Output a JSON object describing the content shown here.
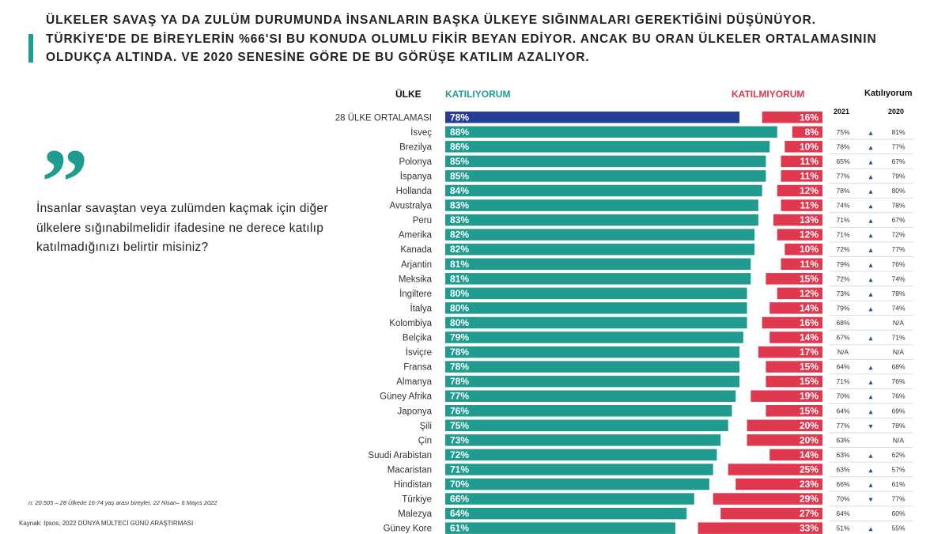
{
  "headline": "ÜLKELER SAVAŞ YA DA ZULÜM DURUMUNDA İNSANLARIN BAŞKA ÜLKEYE SIĞINMALARI GEREKTİĞİNİ DÜŞÜNÜYOR. TÜRKİYE'DE DE BİREYLERİN %66'SI BU KONUDA OLUMLU FİKİR BEYAN EDİYOR. ANCAK BU ORAN ÜLKELER ORTALAMASININ OLDUKÇA ALTINDA.  VE 2020 SENESİNE GÖRE DE BU GÖRÜŞE KATILIM AZALIYOR.",
  "quote_mark": "”",
  "question": "İnsanlar savaştan veya zulümden kaçmak için diğer ülkelere sığınabilmelidir ifadesine ne derece katılıp katılmadığınızı belirtir misiniz?",
  "footnote": "n: 20.505 – 28 Ülkede 16-74 yaş arası bireyler, 22 Nisan– 6 Mayıs 2022",
  "source": "Kaynak: Ipsos, 2022 DÜNYA MÜLTECİ GÜNÜ ARAŞTIRMASI",
  "headers": {
    "country": "ÜLKE",
    "agree": "KATILIYORUM",
    "disagree": "KATILMIYORUM",
    "trend": "Katılıyorum",
    "year_a": "2021",
    "year_b": "2020"
  },
  "colors": {
    "agree": "#1f9c8f",
    "average": "#243d96",
    "disagree": "#e0384f",
    "accent": "#1f9c8f"
  },
  "chart_data": {
    "type": "bar",
    "orientation": "horizontal-diverging",
    "categories": [
      "28 ÜLKE ORTALAMASI",
      "İsveç",
      "Brezilya",
      "Polonya",
      "İspanya",
      "Hollanda",
      "Avustralya",
      "Peru",
      "Amerika",
      "Kanada",
      "Arjantin",
      "Meksika",
      "İngiltere",
      "İtalya",
      "Kolombiya",
      "Belçika",
      "İsviçre",
      "Fransa",
      "Almanya",
      "Güney Afrika",
      "Japonya",
      "Şili",
      "Çin",
      "Suudi Arabistan",
      "Macaristan",
      "Hindistan",
      "Türkiye",
      "Malezya",
      "Güney Kore"
    ],
    "series": [
      {
        "name": "KATILIYORUM",
        "values": [
          78,
          88,
          86,
          85,
          85,
          84,
          83,
          83,
          82,
          82,
          81,
          81,
          80,
          80,
          80,
          79,
          78,
          78,
          78,
          77,
          76,
          75,
          73,
          72,
          71,
          70,
          66,
          64,
          61
        ]
      },
      {
        "name": "KATILMIYORUM",
        "values": [
          16,
          8,
          10,
          11,
          11,
          12,
          11,
          13,
          12,
          10,
          11,
          15,
          12,
          14,
          16,
          14,
          17,
          15,
          15,
          19,
          15,
          20,
          20,
          14,
          25,
          23,
          29,
          27,
          33
        ]
      }
    ],
    "labels_agree": [
      "78%",
      "88%",
      "86%",
      "85%",
      "85%",
      "84%",
      "83%",
      "83%",
      "82%",
      "82%",
      "81%",
      "81%",
      "80%",
      "80%",
      "80%",
      "79%",
      "78%",
      "78%",
      "78%",
      "77%",
      "76%",
      "75%",
      "73%",
      "72%",
      "71%",
      "70%",
      "66%",
      "64%",
      "61%"
    ],
    "labels_disagree": [
      "16%",
      "8%",
      "10%",
      "11%",
      "11%",
      "12%",
      "11%",
      "13%",
      "12%",
      "10%",
      "11%",
      "15%",
      "12%",
      "14%",
      "16%",
      "14%",
      "17%",
      "15%",
      "15%",
      "19%",
      "15%",
      "20%",
      "20%",
      "14%",
      "25%",
      "23%",
      "29%",
      "27%",
      "33%"
    ],
    "trend_2021": [
      "",
      "75%",
      "78%",
      "65%",
      "77%",
      "78%",
      "74%",
      "71%",
      "71%",
      "72%",
      "79%",
      "72%",
      "73%",
      "79%",
      "68%",
      "67%",
      "N/A",
      "64%",
      "71%",
      "70%",
      "64%",
      "77%",
      "63%",
      "63%",
      "63%",
      "66%",
      "70%",
      "64%",
      "51%"
    ],
    "trend_2020": [
      "",
      "81%",
      "77%",
      "67%",
      "79%",
      "80%",
      "78%",
      "67%",
      "72%",
      "77%",
      "76%",
      "74%",
      "78%",
      "74%",
      "N/A",
      "71%",
      "N/A",
      "68%",
      "76%",
      "76%",
      "69%",
      "78%",
      "N/A",
      "62%",
      "57%",
      "61%",
      "77%",
      "60%",
      "55%"
    ],
    "trend_arrow": [
      "",
      "▲",
      "▲",
      "▲",
      "▲",
      "▲",
      "▲",
      "▲",
      "▲",
      "▲",
      "▲",
      "▲",
      "▲",
      "▲",
      "",
      "▲",
      "",
      "▲",
      "▲",
      "▲",
      "▲",
      "▼",
      "",
      "▲",
      "▲",
      "▲",
      "▼",
      "",
      "▲"
    ],
    "xlim": [
      0,
      100
    ],
    "highlight_category": "28 ÜLKE ORTALAMASI"
  }
}
